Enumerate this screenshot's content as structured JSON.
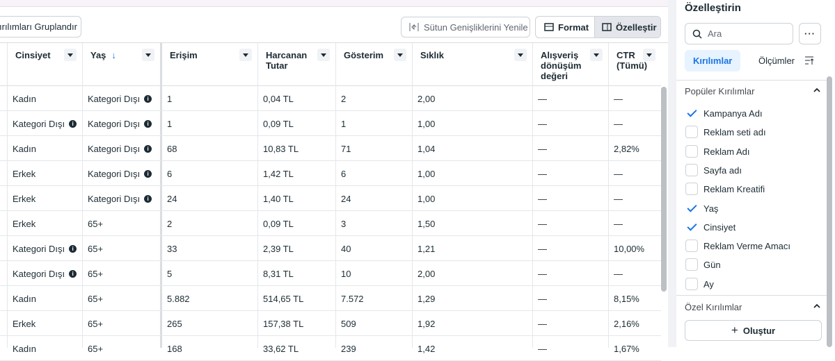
{
  "toolbar": {
    "group_button": "ırılımları Gruplandır",
    "reset_widths": "Sütun Genişliklerini Yenile",
    "format": "Format",
    "customize": "Özelleştir"
  },
  "table": {
    "columns": [
      "Cinsiyet",
      "Yaş",
      "Erişim",
      "Harcanan Tutar",
      "Gösterim",
      "Sıklık",
      "Alışveriş dönüşüm değeri",
      "CTR (Tümü)"
    ],
    "rows": [
      [
        "Kadın",
        {
          "text": "Kategori Dışı",
          "info": true
        },
        "1",
        "0,04 TL",
        "2",
        "2,00",
        "—",
        "—"
      ],
      [
        {
          "text": "Kategori Dışı",
          "info": true
        },
        {
          "text": "Kategori Dışı",
          "info": true
        },
        "1",
        "0,09 TL",
        "1",
        "1,00",
        "—",
        "—"
      ],
      [
        "Kadın",
        {
          "text": "Kategori Dışı",
          "info": true
        },
        "68",
        "10,83 TL",
        "71",
        "1,04",
        "—",
        "2,82%"
      ],
      [
        "Erkek",
        {
          "text": "Kategori Dışı",
          "info": true
        },
        "6",
        "1,42 TL",
        "6",
        "1,00",
        "—",
        "—"
      ],
      [
        "Erkek",
        {
          "text": "Kategori Dışı",
          "info": true
        },
        "24",
        "1,40 TL",
        "24",
        "1,00",
        "—",
        "—"
      ],
      [
        "Erkek",
        "65+",
        "2",
        "0,09 TL",
        "3",
        "1,50",
        "—",
        "—"
      ],
      [
        {
          "text": "Kategori Dışı",
          "info": true
        },
        "65+",
        "33",
        "2,39 TL",
        "40",
        "1,21",
        "—",
        "10,00%"
      ],
      [
        {
          "text": "Kategori Dışı",
          "info": true
        },
        "65+",
        "5",
        "8,31 TL",
        "10",
        "2,00",
        "—",
        "—"
      ],
      [
        "Kadın",
        "65+",
        "5.882",
        "514,65 TL",
        "7.572",
        "1,29",
        "—",
        "8,15%"
      ],
      [
        "Erkek",
        "65+",
        "265",
        "157,38 TL",
        "509",
        "1,92",
        "—",
        "2,16%"
      ],
      [
        "Kadın",
        "65+",
        "168",
        "33,62 TL",
        "239",
        "1,42",
        "—",
        "1,67%"
      ]
    ]
  },
  "panel": {
    "title": "Özelleştirin",
    "search_placeholder": "Ara",
    "tabs": [
      "Kırılımlar",
      "Ölçümler"
    ],
    "active_tab": 0,
    "popular_section": "Popüler Kırılımlar",
    "popular_items": [
      {
        "label": "Kampanya Adı",
        "checked": true
      },
      {
        "label": "Reklam seti adı",
        "checked": false
      },
      {
        "label": "Reklam Adı",
        "checked": false
      },
      {
        "label": "Sayfa adı",
        "checked": false
      },
      {
        "label": "Reklam Kreatifi",
        "checked": false
      },
      {
        "label": "Yaş",
        "checked": true
      },
      {
        "label": "Cinsiyet",
        "checked": true
      },
      {
        "label": "Reklam Verme Amacı",
        "checked": false
      },
      {
        "label": "Gün",
        "checked": false
      },
      {
        "label": "Ay",
        "checked": false
      }
    ],
    "custom_section": "Özel Kırılımlar",
    "create_button": "Oluştur"
  }
}
